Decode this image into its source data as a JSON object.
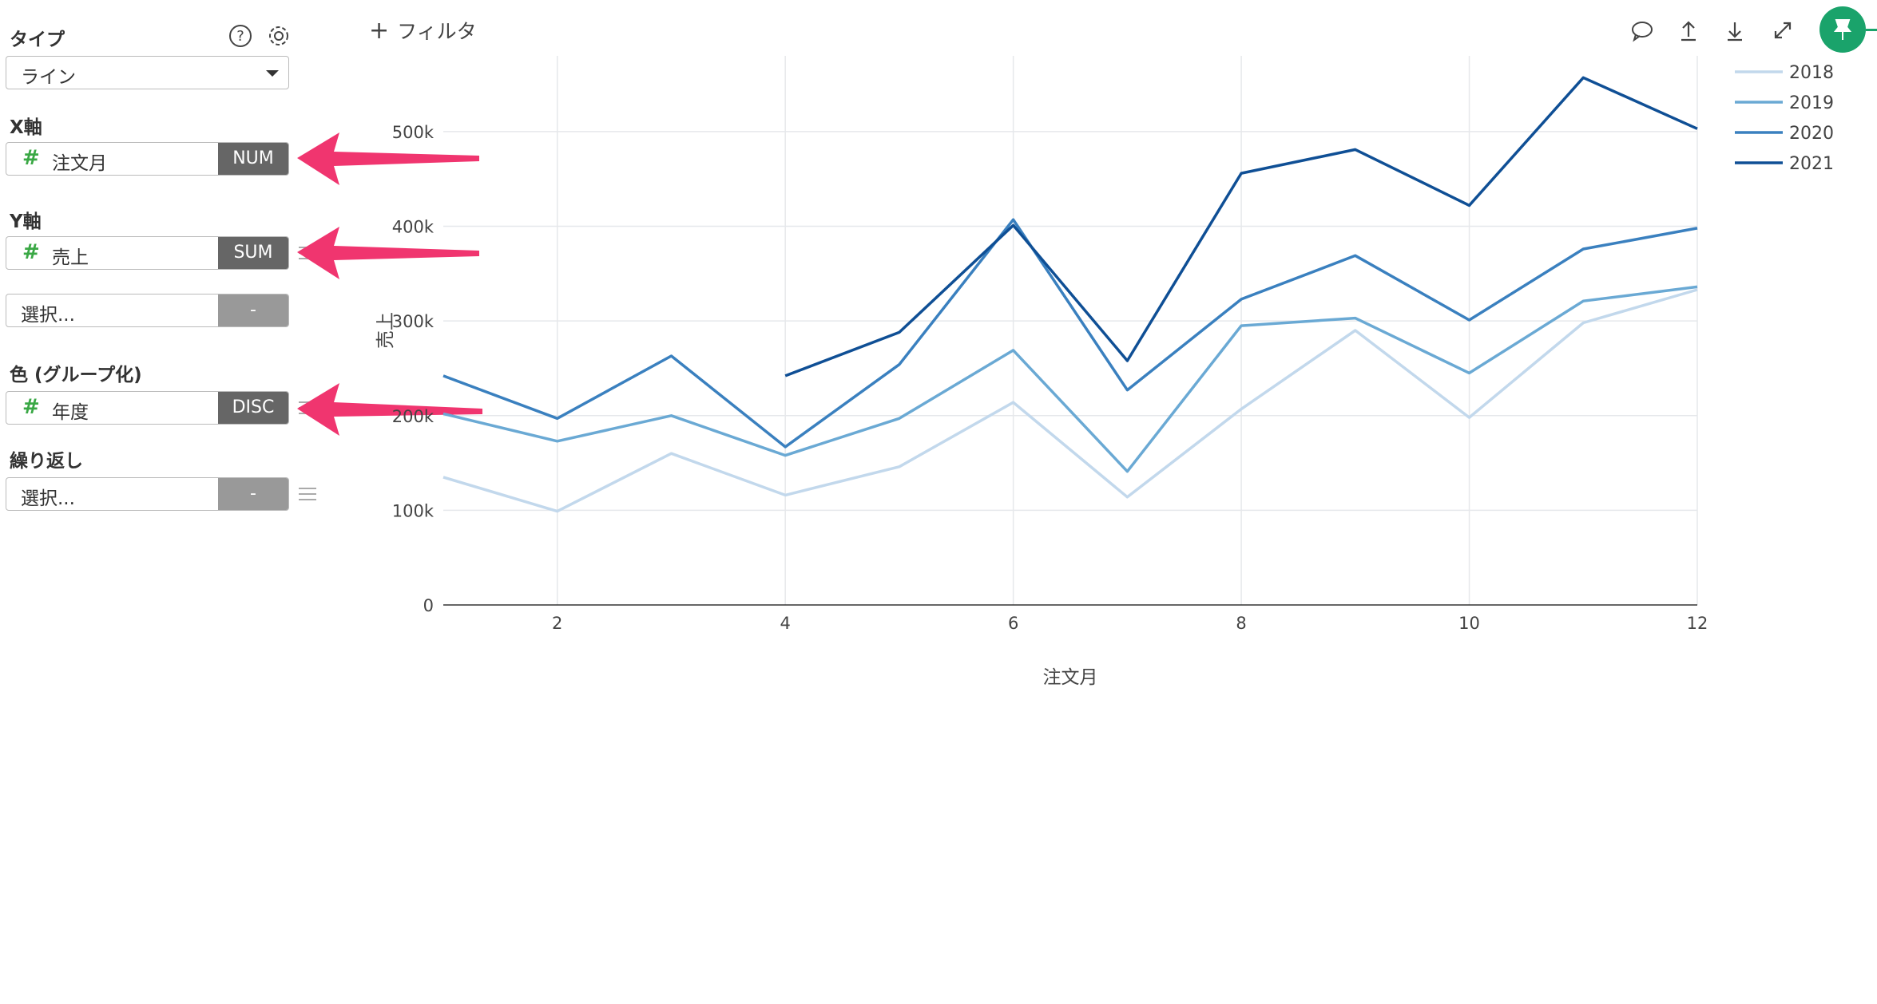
{
  "sidebar": {
    "type_label": "タイプ",
    "type_value": "ライン",
    "x_label": "X軸",
    "x_field": "注文月",
    "x_agg": "NUM",
    "y_label": "Y軸",
    "y_field": "売上",
    "y_agg": "SUM",
    "y2_placeholder": "選択...",
    "y2_agg": "-",
    "color_label": "色 (グループ化)",
    "color_field": "年度",
    "color_agg": "DISC",
    "repeat_label": "繰り返し",
    "repeat_placeholder": "選択...",
    "repeat_agg": "-",
    "hash_symbol": "#"
  },
  "toolbar": {
    "filter_plus": "+",
    "filter_label": "フィルタ",
    "icons": [
      "comment-icon",
      "upload-icon",
      "download-icon",
      "expand-icon",
      "pin-icon"
    ]
  },
  "colors": {
    "accent": "#1aa36b",
    "arrow": "#f0356f",
    "s2018": "#c2d8ec",
    "s2019": "#6aa9d4",
    "s2020": "#3a80bf",
    "s2021": "#0f4f95"
  },
  "chart_data": {
    "type": "line",
    "xlabel": "注文月",
    "ylabel": "売上",
    "xlim": [
      1,
      12
    ],
    "ylim": [
      0,
      580000
    ],
    "xticks": [
      2,
      4,
      6,
      8,
      10,
      12
    ],
    "xtick_labels": [
      "2",
      "4",
      "6",
      "8",
      "10",
      "12"
    ],
    "yticks": [
      0,
      100000,
      200000,
      300000,
      400000,
      500000
    ],
    "ytick_labels": [
      "0",
      "100k",
      "200k",
      "300k",
      "400k",
      "500k"
    ],
    "legend_position": "top-right",
    "grid": true,
    "series": [
      {
        "name": "2018",
        "x": [
          1,
          2,
          3,
          4,
          5,
          6,
          7,
          8,
          9,
          10,
          11,
          12
        ],
        "values": [
          135000,
          99000,
          160000,
          116000,
          146000,
          214000,
          114000,
          207000,
          290000,
          198000,
          298000,
          333000
        ]
      },
      {
        "name": "2019",
        "x": [
          1,
          2,
          3,
          4,
          5,
          6,
          7,
          8,
          9,
          10,
          11,
          12
        ],
        "values": [
          202000,
          173000,
          200000,
          158000,
          197000,
          269000,
          141000,
          295000,
          303000,
          245000,
          321000,
          336000
        ]
      },
      {
        "name": "2020",
        "x": [
          1,
          2,
          3,
          4,
          5,
          6,
          7,
          8,
          9,
          10,
          11,
          12
        ],
        "values": [
          242000,
          197000,
          263000,
          167000,
          254000,
          407000,
          227000,
          323000,
          369000,
          301000,
          376000,
          398000
        ]
      },
      {
        "name": "2021",
        "x": [
          4,
          5,
          6,
          7,
          8,
          9,
          10,
          11,
          12
        ],
        "values": [
          242000,
          288000,
          401000,
          258000,
          456000,
          481000,
          422000,
          557000,
          503000
        ]
      }
    ]
  }
}
